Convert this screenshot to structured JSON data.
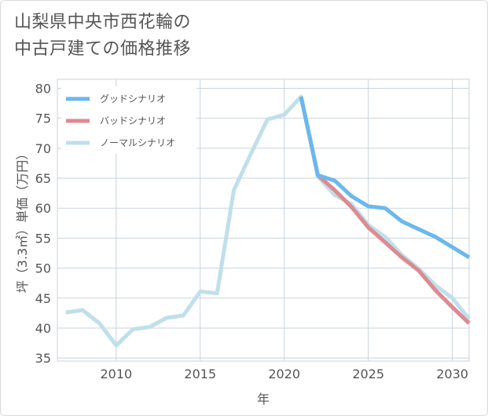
{
  "title_lines": [
    "山梨県中央市西花輪の",
    "中古戸建ての価格推移"
  ],
  "colors": {
    "good": "#6ab8ed",
    "bad": "#dd8a90",
    "normal": "#bfdfeb",
    "grid": "#c9d3dc",
    "axis_text": "#555555"
  },
  "chart_data": {
    "type": "line",
    "title": "山梨県中央市西花輪の中古戸建ての価格推移",
    "xlabel": "年",
    "ylabel": "坪（3.3㎡）単価（万円）",
    "xlim": [
      2006.5,
      2031
    ],
    "ylim": [
      34.5,
      81.5
    ],
    "xticks": [
      2010,
      2015,
      2020,
      2025,
      2030
    ],
    "yticks": [
      35,
      40,
      45,
      50,
      55,
      60,
      65,
      70,
      75,
      80
    ],
    "legend_position": "top-left",
    "series": [
      {
        "key": "good",
        "name": "グッドシナリオ",
        "x": [
          2021,
          2022,
          2023,
          2024,
          2025,
          2026,
          2027,
          2028,
          2029,
          2030,
          2031
        ],
        "values": [
          78.6,
          65.5,
          64.6,
          62.0,
          60.3,
          60.0,
          57.8,
          56.5,
          55.2,
          53.5,
          51.8
        ]
      },
      {
        "key": "bad",
        "name": "バッドシナリオ",
        "x": [
          2021,
          2022,
          2023,
          2024,
          2025,
          2026,
          2027,
          2028,
          2029,
          2030,
          2031
        ],
        "values": [
          78.6,
          65.5,
          63.0,
          60.2,
          56.8,
          54.3,
          51.8,
          49.6,
          46.3,
          43.5,
          40.8
        ]
      },
      {
        "key": "normal",
        "name": "ノーマルシナリオ",
        "x": [
          2007,
          2008,
          2009,
          2010,
          2011,
          2012,
          2013,
          2014,
          2015,
          2016,
          2017,
          2018,
          2019,
          2020,
          2021,
          2022,
          2023,
          2024,
          2025,
          2026,
          2027,
          2028,
          2029,
          2030,
          2031
        ],
        "values": [
          42.6,
          43.0,
          40.8,
          37.1,
          39.8,
          40.2,
          41.7,
          42.1,
          46.1,
          45.8,
          63.0,
          69.0,
          74.8,
          75.6,
          78.6,
          65.3,
          62.2,
          60.7,
          57.2,
          55.2,
          52.2,
          49.9,
          47.1,
          45.0,
          41.5
        ]
      }
    ]
  }
}
